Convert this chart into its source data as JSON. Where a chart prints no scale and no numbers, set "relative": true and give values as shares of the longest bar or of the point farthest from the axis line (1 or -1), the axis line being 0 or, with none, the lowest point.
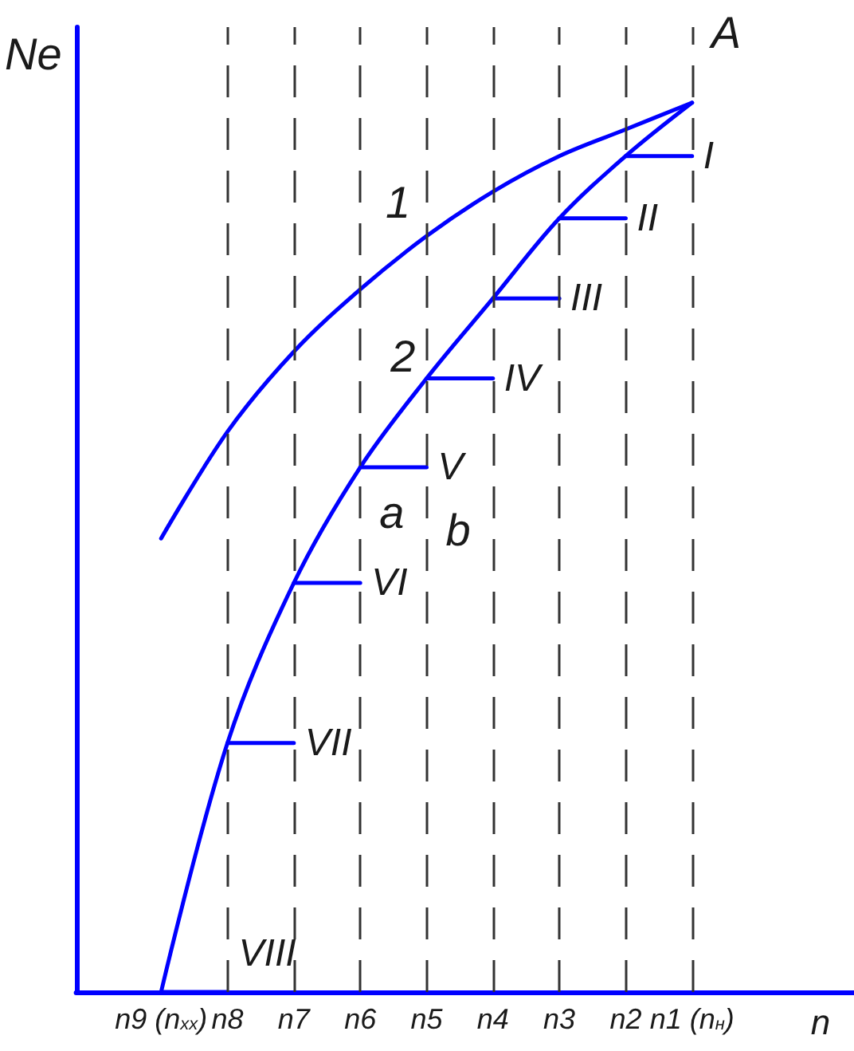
{
  "chart_data": {
    "type": "line",
    "relative": true,
    "xlabel": "n",
    "ylabel": "Ne",
    "marker": "none",
    "categories": [
      "n9 (n$_{хх}$)",
      "n8",
      "n7",
      "n6",
      "n5",
      "n4",
      "n3",
      "n2",
      "n1 (n$_{н}$)"
    ],
    "series": [
      {
        "name": "1",
        "color": "#0000ff",
        "values": [
          0.51,
          0.63,
          0.72,
          0.79,
          0.85,
          0.9,
          0.94,
          0.97,
          1
        ]
      },
      {
        "name": "2",
        "color": "#0000ff",
        "values": [
          0,
          0.28,
          0.46,
          0.59,
          0.69,
          0.78,
          0.87,
          0.94,
          1
        ]
      },
      {
        "name": "I",
        "color": "#0000ff",
        "values": [
          null,
          null,
          null,
          null,
          null,
          null,
          null,
          0.94,
          0.94
        ]
      },
      {
        "name": "II",
        "color": "#0000ff",
        "values": [
          null,
          null,
          null,
          null,
          null,
          null,
          0.87,
          0.87,
          null
        ]
      },
      {
        "name": "III",
        "color": "#0000ff",
        "values": [
          null,
          null,
          null,
          null,
          null,
          0.78,
          0.78,
          null,
          null
        ]
      },
      {
        "name": "IV",
        "color": "#0000ff",
        "values": [
          null,
          null,
          null,
          null,
          0.69,
          0.69,
          null,
          null,
          null
        ]
      },
      {
        "name": "V",
        "color": "#0000ff",
        "values": [
          null,
          null,
          null,
          0.59,
          0.59,
          null,
          null,
          null,
          null
        ]
      },
      {
        "name": "VI",
        "color": "#0000ff",
        "values": [
          null,
          null,
          0.46,
          0.46,
          null,
          null,
          null,
          null,
          null
        ]
      },
      {
        "name": "VII",
        "color": "#0000ff",
        "values": [
          null,
          0.28,
          0.28,
          null,
          null,
          null,
          null,
          null,
          null
        ]
      },
      {
        "name": "VIII",
        "color": "#0000ff",
        "values": [
          0,
          0,
          null,
          null,
          null,
          null,
          null,
          null,
          null
        ]
      }
    ],
    "ref_lines": [
      {
        "axis": "x",
        "value": "n8",
        "line_style": "dashed",
        "color": "#333333"
      },
      {
        "axis": "x",
        "value": "n7",
        "line_style": "dashed",
        "color": "#333333"
      },
      {
        "axis": "x",
        "value": "n6",
        "line_style": "dashed",
        "color": "#333333"
      },
      {
        "axis": "x",
        "value": "n5",
        "line_style": "dashed",
        "color": "#333333"
      },
      {
        "axis": "x",
        "value": "n4",
        "line_style": "dashed",
        "color": "#333333"
      },
      {
        "axis": "x",
        "value": "n3",
        "line_style": "dashed",
        "color": "#333333"
      },
      {
        "axis": "x",
        "value": "n2",
        "line_style": "dashed",
        "color": "#333333"
      },
      {
        "axis": "x",
        "value": "n1 (n$_{н}$)",
        "line_style": "dashed",
        "color": "#333333"
      }
    ],
    "annotations": [
      {
        "text": "A",
        "x": "n1 (n$_{н}$)",
        "y": 1
      },
      {
        "text": "a",
        "x": "n6",
        "y": 0.46
      },
      {
        "text": "b",
        "x": "n5",
        "y": 0.44
      }
    ]
  }
}
